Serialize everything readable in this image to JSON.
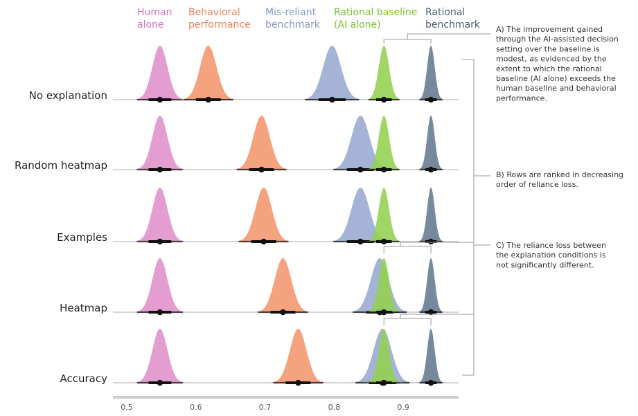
{
  "chart_data": {
    "type": "ridgeline",
    "xlim": [
      0.48,
      0.98
    ],
    "xticks": [
      "0.5",
      "0.6",
      "0.7",
      "0.8",
      "0.9"
    ],
    "series": [
      {
        "name_lines": [
          "Human",
          "alone"
        ],
        "color": "#e08fca",
        "text_color": "#d96fbd"
      },
      {
        "name_lines": [
          "Behavioral",
          "performance"
        ],
        "color": "#f4956c",
        "text_color": "#ee8357"
      },
      {
        "name_lines": [
          "Mis-reliant",
          "benchmark"
        ],
        "color": "#97a8d0",
        "text_color": "#8798c6"
      },
      {
        "name_lines": [
          "Rational baseline",
          "(AI alone)"
        ],
        "color": "#93d050",
        "text_color": "#7cc233"
      },
      {
        "name_lines": [
          "Rational",
          "benchmark"
        ],
        "color": "#647a90",
        "text_color": "#4a5f75"
      }
    ],
    "rows": [
      {
        "label": "No explanation",
        "values": [
          0.548,
          0.618,
          0.797,
          0.872,
          0.94
        ]
      },
      {
        "label": "Random heatmap",
        "values": [
          0.548,
          0.695,
          0.838,
          0.872,
          0.94
        ]
      },
      {
        "label": "Examples",
        "values": [
          0.548,
          0.698,
          0.838,
          0.872,
          0.94
        ]
      },
      {
        "label": "Heatmap",
        "values": [
          0.548,
          0.726,
          0.866,
          0.872,
          0.94
        ]
      },
      {
        "label": "Accuracy",
        "values": [
          0.548,
          0.748,
          0.87,
          0.872,
          0.94
        ]
      }
    ],
    "annotations": [
      {
        "id": "A",
        "lines": [
          "A) The improvement gained",
          "through the AI-assisted decision",
          "setting over the baseline is",
          "modest, as evidenced by the",
          "extent to which the rational",
          "baseline (AI alone) exceeds the",
          "human baseline and behavioral",
          "performance."
        ]
      },
      {
        "id": "B",
        "lines": [
          "B) Rows are ranked in decreasing",
          "order of reliance loss."
        ]
      },
      {
        "id": "C",
        "lines": [
          "C) The reliance loss between",
          "the explanation conditions is",
          "not significantly different."
        ]
      }
    ]
  }
}
